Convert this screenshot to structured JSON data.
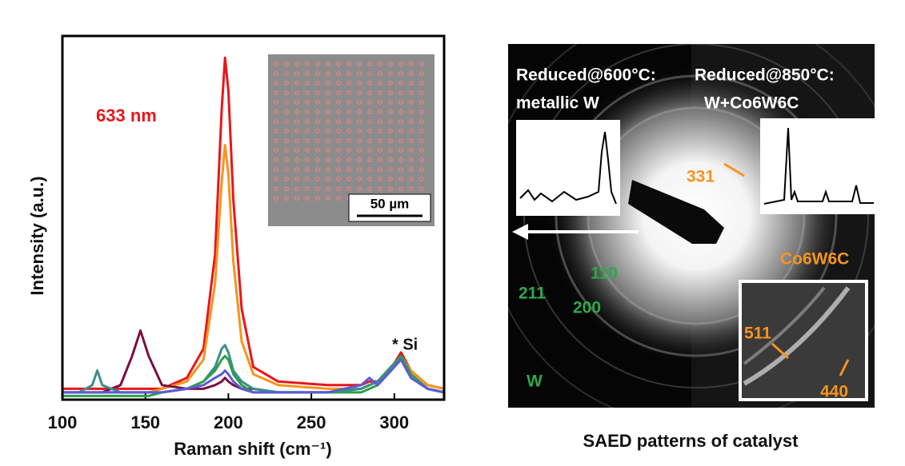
{
  "chart_data": {
    "type": "line",
    "y_label": "Intensity (a.u.)",
    "x_label": "Raman shift (cm⁻¹)",
    "annotation_laser": "633 nm",
    "annotation_si": "* Si",
    "inset_scale": "50 µm",
    "xlim": [
      100,
      330
    ],
    "xticks": [
      100,
      150,
      200,
      250,
      300
    ],
    "ylim": [
      0,
      100
    ],
    "x": [
      100,
      110,
      118,
      121,
      124,
      135,
      142,
      147,
      152,
      160,
      175,
      185,
      192,
      196,
      198,
      200,
      203,
      208,
      215,
      230,
      260,
      280,
      285,
      290,
      300,
      304,
      310,
      320,
      330
    ],
    "series": [
      {
        "color": "#e8161b",
        "values": [
          3,
          3,
          3,
          3,
          3,
          3,
          3,
          3,
          3,
          3,
          6,
          14,
          40,
          80,
          94,
          85,
          55,
          25,
          9,
          5,
          4,
          4,
          5,
          5,
          10,
          13,
          8,
          4,
          3
        ]
      },
      {
        "color": "#f7941d",
        "values": [
          2,
          2,
          2,
          2,
          2,
          2,
          2,
          2,
          2,
          3,
          5,
          11,
          32,
          60,
          70,
          62,
          38,
          16,
          7,
          4,
          3,
          3,
          4,
          5,
          10,
          12,
          8,
          4,
          3
        ]
      },
      {
        "color": "#7b1040",
        "values": [
          2,
          2,
          2,
          2,
          2,
          4,
          12,
          19,
          12,
          4,
          3,
          3,
          4,
          5,
          6,
          5,
          4,
          3,
          3,
          2,
          2,
          3,
          4,
          5,
          10,
          12,
          7,
          3,
          2
        ]
      },
      {
        "color": "#3a8f8a",
        "values": [
          2,
          2,
          4,
          8,
          4,
          2,
          2,
          2,
          2,
          2,
          3,
          5,
          9,
          14,
          15,
          13,
          8,
          5,
          3,
          2,
          2,
          3,
          4,
          5,
          10,
          12,
          7,
          3,
          2
        ]
      },
      {
        "color": "#2e9e4a",
        "values": [
          1,
          1,
          1,
          1,
          1,
          1,
          1,
          1,
          1,
          2,
          3,
          5,
          8,
          11,
          12,
          11,
          7,
          4,
          2,
          2,
          2,
          2,
          3,
          4,
          9,
          12,
          7,
          3,
          2
        ]
      },
      {
        "color": "#5b5bd6",
        "values": [
          2,
          2,
          2,
          2,
          2,
          2,
          2,
          2,
          2,
          2,
          3,
          4,
          6,
          7,
          8,
          7,
          5,
          3,
          2,
          2,
          2,
          4,
          6,
          4,
          9,
          11,
          6,
          3,
          2
        ]
      }
    ]
  },
  "saed_panel": {
    "caption": "SAED patterns of catalyst",
    "left_title": "Reduced@600°C:",
    "left_subtitle": "metallic W",
    "right_title": "Reduced@850°C:",
    "right_subtitle": "W+Co6W6C",
    "labels": [
      "331",
      "Co6W6C",
      "110",
      "211",
      "200",
      "W",
      "511",
      "440"
    ]
  }
}
